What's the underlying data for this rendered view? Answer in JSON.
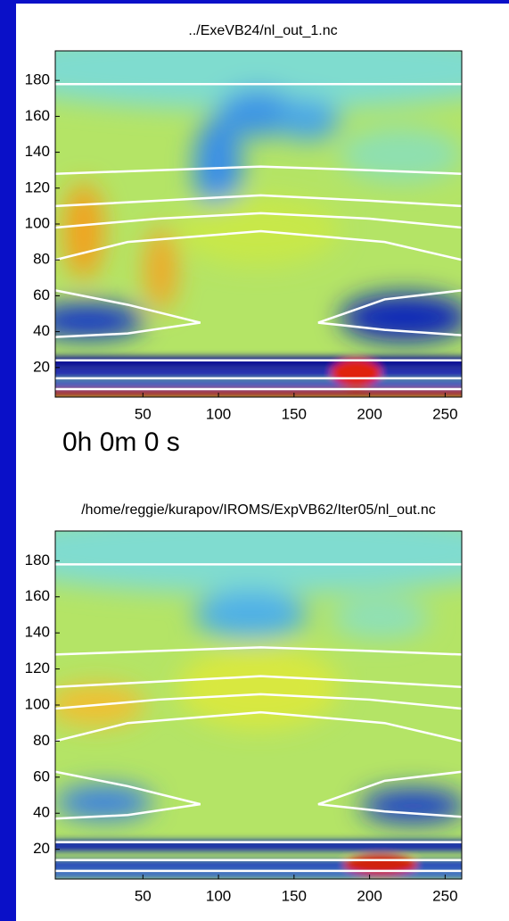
{
  "chart_data": [
    {
      "type": "field",
      "title": "../ExeVB24/nl_out_1.nc",
      "annotation": "0h 0m 0 s",
      "xlim": [
        -8,
        261
      ],
      "ylim": [
        3.5,
        196.5
      ],
      "xticks": [
        50,
        100,
        150,
        200,
        250
      ],
      "yticks": [
        20,
        40,
        60,
        80,
        100,
        120,
        140,
        160,
        180
      ]
    },
    {
      "type": "field",
      "title": "/home/reggie/kurapov/IROMS/ExpVB62/Iter05/nl_out.nc",
      "xlim": [
        -8,
        261
      ],
      "ylim": [
        3.5,
        196.5
      ],
      "xticks": [
        50,
        100,
        150,
        200,
        250
      ],
      "yticks": [
        20,
        40,
        60,
        80,
        100,
        120,
        140,
        160,
        180
      ]
    }
  ]
}
